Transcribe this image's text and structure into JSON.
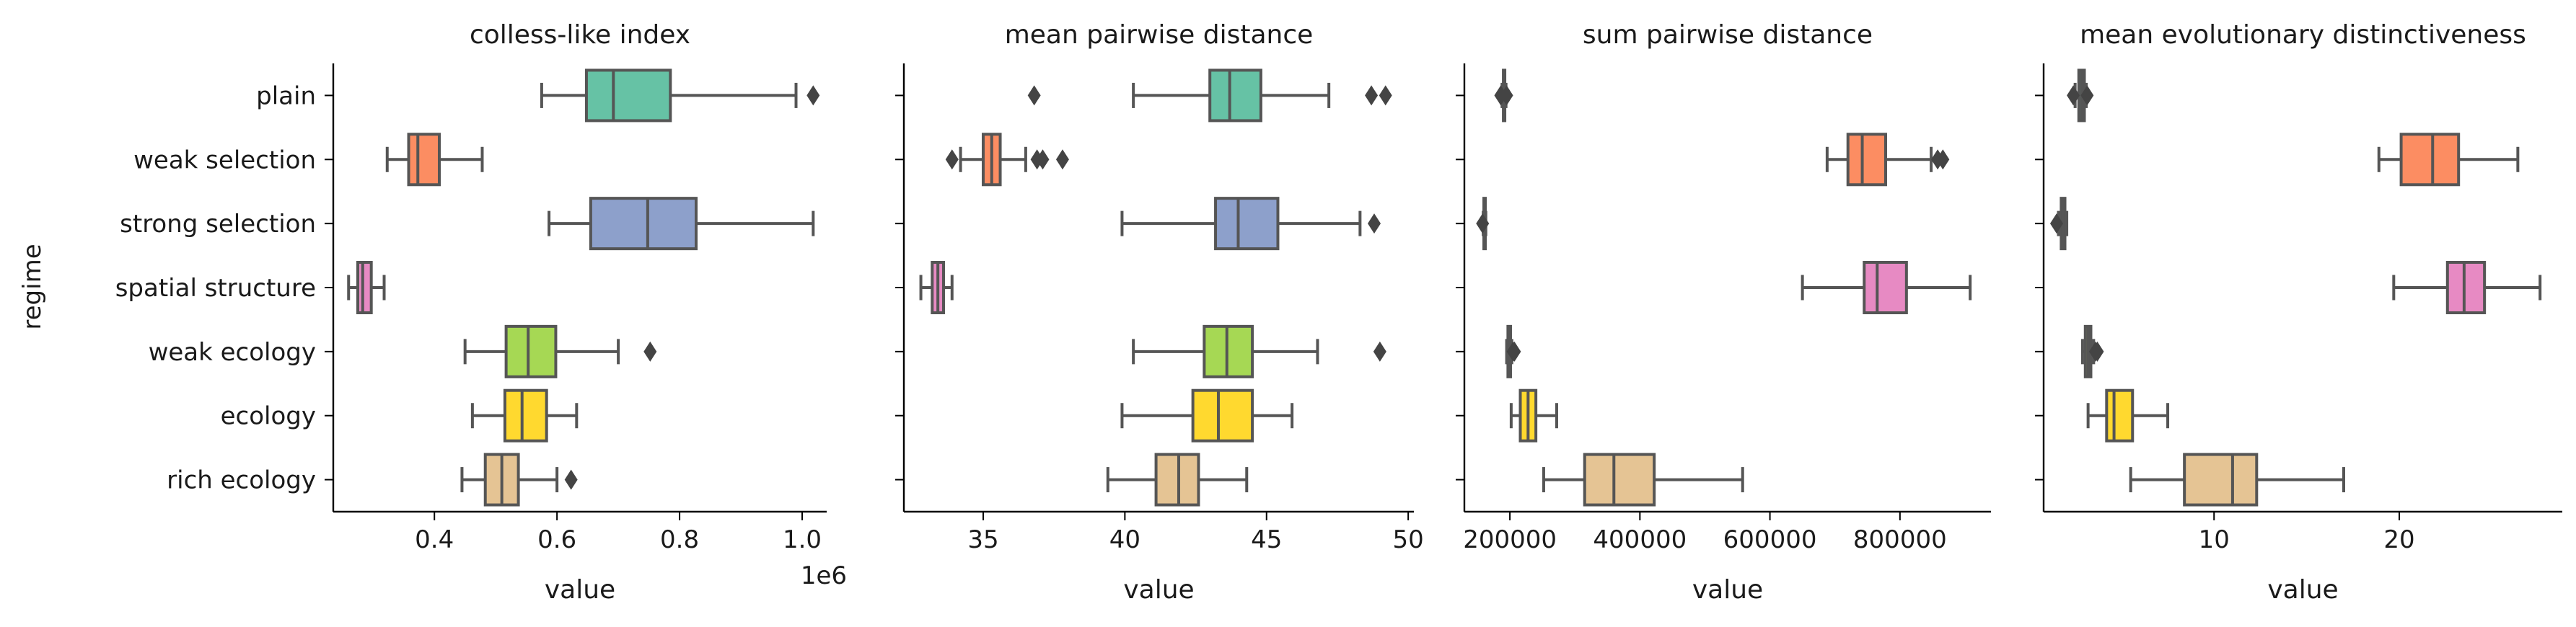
{
  "figure": {
    "ylabel": "regime",
    "categories": [
      "plain",
      "weak selection",
      "strong selection",
      "spatial structure",
      "weak ecology",
      "ecology",
      "rich ecology"
    ],
    "colors": [
      "#66c2a5",
      "#fc8d62",
      "#8da0cb",
      "#e78ac3",
      "#a6d854",
      "#ffd92f",
      "#e5c494"
    ]
  },
  "chart_data": [
    {
      "type": "box",
      "title": "colless-like index",
      "xlabel": "value",
      "offset_label": "1e6",
      "xlim": [
        0.235,
        1.04
      ],
      "xticks": [
        0.4,
        0.6,
        0.8,
        1.0
      ],
      "tick_labels": [
        "0.4",
        "0.6",
        "0.8",
        "1.0"
      ],
      "boxes": [
        {
          "wlo": 0.575,
          "q1": 0.648,
          "med": 0.692,
          "q3": 0.785,
          "whi": 0.99,
          "fliers": [
            1.018
          ]
        },
        {
          "wlo": 0.323,
          "q1": 0.358,
          "med": 0.373,
          "q3": 0.408,
          "whi": 0.478,
          "fliers": []
        },
        {
          "wlo": 0.587,
          "q1": 0.655,
          "med": 0.748,
          "q3": 0.827,
          "whi": 1.018,
          "fliers": []
        },
        {
          "wlo": 0.26,
          "q1": 0.275,
          "med": 0.283,
          "q3": 0.297,
          "whi": 0.318,
          "fliers": []
        },
        {
          "wlo": 0.45,
          "q1": 0.517,
          "med": 0.553,
          "q3": 0.598,
          "whi": 0.7,
          "fliers": [
            0.752
          ]
        },
        {
          "wlo": 0.462,
          "q1": 0.515,
          "med": 0.543,
          "q3": 0.583,
          "whi": 0.632,
          "fliers": []
        },
        {
          "wlo": 0.445,
          "q1": 0.483,
          "med": 0.51,
          "q3": 0.537,
          "whi": 0.6,
          "fliers": [
            0.623
          ]
        }
      ]
    },
    {
      "type": "box",
      "title": "mean pairwise distance",
      "xlabel": "value",
      "xlim": [
        32.2,
        50.2
      ],
      "xticks": [
        35,
        40,
        45,
        50
      ],
      "tick_labels": [
        "35",
        "40",
        "45",
        "50"
      ],
      "boxes": [
        {
          "wlo": 40.3,
          "q1": 43.0,
          "med": 43.7,
          "q3": 44.8,
          "whi": 47.2,
          "fliers": [
            36.8,
            48.7,
            49.2
          ]
        },
        {
          "wlo": 34.2,
          "q1": 35.0,
          "med": 35.3,
          "q3": 35.6,
          "whi": 36.5,
          "fliers": [
            33.9,
            36.9,
            37.1,
            37.8
          ]
        },
        {
          "wlo": 39.9,
          "q1": 43.2,
          "med": 44.0,
          "q3": 45.4,
          "whi": 48.3,
          "fliers": [
            48.8
          ]
        },
        {
          "wlo": 32.8,
          "q1": 33.2,
          "med": 33.4,
          "q3": 33.6,
          "whi": 33.9,
          "fliers": []
        },
        {
          "wlo": 40.3,
          "q1": 42.8,
          "med": 43.6,
          "q3": 44.5,
          "whi": 46.8,
          "fliers": [
            49.0
          ]
        },
        {
          "wlo": 39.9,
          "q1": 42.4,
          "med": 43.3,
          "q3": 44.5,
          "whi": 45.9,
          "fliers": []
        },
        {
          "wlo": 39.4,
          "q1": 41.1,
          "med": 41.9,
          "q3": 42.6,
          "whi": 44.3,
          "fliers": []
        }
      ]
    },
    {
      "type": "box",
      "title": "sum pairwise distance",
      "xlabel": "value",
      "xlim": [
        130000,
        940000
      ],
      "xticks": [
        200000,
        400000,
        600000,
        800000
      ],
      "tick_labels": [
        "200000",
        "400000",
        "600000",
        "800000"
      ],
      "boxes": [
        {
          "wlo": 188000,
          "q1": 190000,
          "med": 191000,
          "q3": 192000,
          "whi": 194000,
          "fliers": [
            186000,
            195000
          ]
        },
        {
          "wlo": 688000,
          "q1": 720000,
          "med": 742000,
          "q3": 778000,
          "whi": 848000,
          "fliers": [
            858000,
            866000
          ]
        },
        {
          "wlo": 159000,
          "q1": 160000,
          "med": 161000,
          "q3": 162000,
          "whi": 163000,
          "fliers": [
            158000
          ]
        },
        {
          "wlo": 650000,
          "q1": 745000,
          "med": 765000,
          "q3": 810000,
          "whi": 908000,
          "fliers": []
        },
        {
          "wlo": 195000,
          "q1": 197000,
          "med": 199000,
          "q3": 201000,
          "whi": 203000,
          "fliers": [
            205000,
            207000
          ]
        },
        {
          "wlo": 202000,
          "q1": 216000,
          "med": 228000,
          "q3": 240000,
          "whi": 272000,
          "fliers": []
        },
        {
          "wlo": 252000,
          "q1": 315000,
          "med": 360000,
          "q3": 422000,
          "whi": 558000,
          "fliers": []
        }
      ]
    },
    {
      "type": "box",
      "title": "mean evolutionary distinctiveness",
      "xlabel": "value",
      "xlim": [
        0.8,
        28.8
      ],
      "xticks": [
        10,
        20
      ],
      "tick_labels": [
        "10",
        "20"
      ],
      "boxes": [
        {
          "wlo": 2.5,
          "q1": 2.7,
          "med": 2.85,
          "q3": 3.0,
          "whi": 3.1,
          "fliers": [
            2.4,
            3.15
          ]
        },
        {
          "wlo": 18.9,
          "q1": 20.1,
          "med": 21.8,
          "q3": 23.2,
          "whi": 26.4,
          "fliers": []
        },
        {
          "wlo": 1.6,
          "q1": 1.75,
          "med": 1.85,
          "q3": 1.95,
          "whi": 2.05,
          "fliers": [
            1.5
          ]
        },
        {
          "wlo": 19.7,
          "q1": 22.6,
          "med": 23.5,
          "q3": 24.6,
          "whi": 27.6,
          "fliers": []
        },
        {
          "wlo": 2.9,
          "q1": 3.05,
          "med": 3.2,
          "q3": 3.35,
          "whi": 3.5,
          "fliers": [
            3.6,
            3.7
          ]
        },
        {
          "wlo": 3.2,
          "q1": 4.2,
          "med": 4.6,
          "q3": 5.6,
          "whi": 7.5,
          "fliers": []
        },
        {
          "wlo": 5.5,
          "q1": 8.4,
          "med": 11.0,
          "q3": 12.3,
          "whi": 17.0,
          "fliers": []
        }
      ]
    }
  ]
}
